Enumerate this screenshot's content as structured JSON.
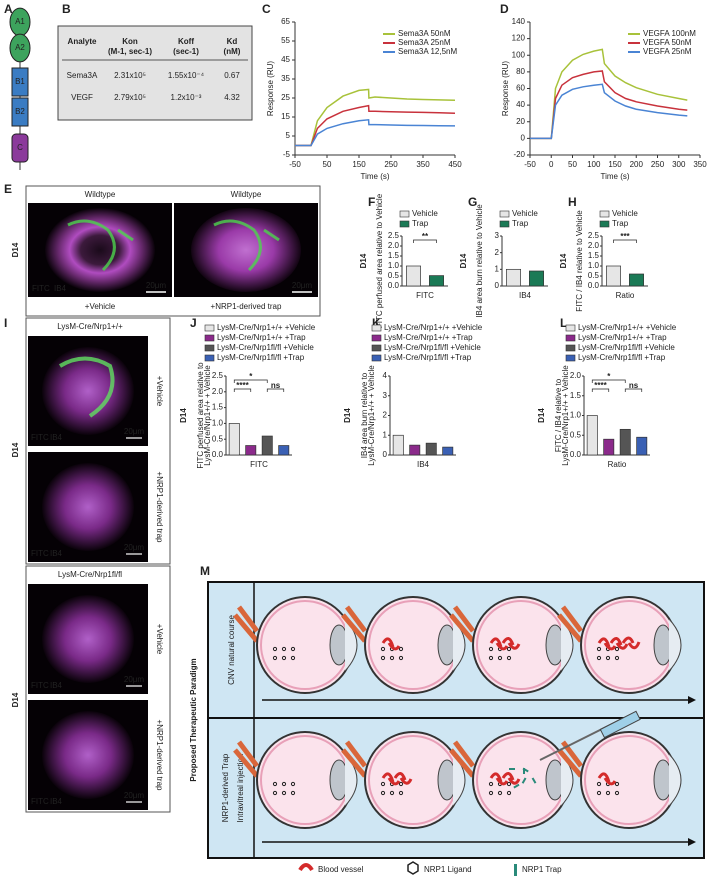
{
  "panel_labels": [
    "A",
    "B",
    "C",
    "D",
    "E",
    "F",
    "G",
    "H",
    "I",
    "J",
    "K",
    "L",
    "M"
  ],
  "domain_labels": [
    "A1",
    "A2",
    "B1",
    "B2",
    "C"
  ],
  "table": {
    "header": [
      [
        "Analyte"
      ],
      [
        "Kon",
        "(M-1, sec-1)"
      ],
      [
        "Koff",
        "(sec-1)"
      ],
      [
        "Kd",
        "(nM)"
      ]
    ],
    "rows": [
      [
        "Sema3A",
        "2.31x10⁵",
        "1.55x10⁻⁴",
        "0.67"
      ],
      [
        "VEGF",
        "2.79x10⁵",
        "1.2x10⁻³",
        "4.32"
      ]
    ]
  },
  "panel_e": {
    "day": "D14",
    "titles": [
      "Wildtype",
      "Wildtype"
    ],
    "conditions": [
      "+Vehicle",
      "+NRP1-derived trap"
    ],
    "stain": [
      "FITC",
      "IB4"
    ],
    "scale": [
      "20μm",
      "20μm"
    ]
  },
  "panel_i": {
    "days": [
      "D14",
      "D14"
    ],
    "titles": [
      "LysM-Cre/Nrp1+/+",
      "LysM-Cre/Nrp1fl/fl"
    ],
    "conditions": [
      "+Vehicle",
      "+NRP1-derived trap",
      "+Vehicle",
      "+NRP1-derived trap"
    ],
    "stain": [
      [
        "FITC",
        "IB4"
      ],
      [
        "FITC",
        "IB4"
      ],
      [
        "FITC",
        "IB4"
      ],
      [
        "FITC",
        "IB4"
      ]
    ],
    "scale": [
      "20μm",
      "20μm",
      "20μm",
      "20μm"
    ]
  },
  "panel_m": {
    "title": "Proposed Therapeutic Paradigm",
    "row1": [
      "CNV natural course"
    ],
    "row2": [
      "NRP1-derived Trap",
      "Intravitreal injection"
    ],
    "legend": [
      "Blood vessel",
      "NRP1 Ligand",
      "NRP1 Trap"
    ]
  },
  "chart_data": [
    {
      "type": "line",
      "x_label": "Time (s)",
      "y_label": "Response (RU)",
      "legend": "upper right",
      "x": [
        -50,
        -5,
        0,
        20,
        50,
        100,
        150,
        180,
        181,
        200,
        250,
        300,
        350,
        400,
        450
      ],
      "xlim": [
        -50,
        450
      ],
      "xticks": [
        -50,
        50,
        150,
        250,
        350,
        450
      ],
      "ylim": [
        -5,
        65
      ],
      "yticks": [
        -5,
        5,
        15,
        25,
        35,
        45,
        55,
        65
      ],
      "series": [
        {
          "name": "Sema3A 50nM",
          "color": "#a8c23a",
          "values": [
            0,
            0,
            0,
            13,
            20,
            26,
            29,
            29.5,
            25,
            25.5,
            25,
            24.5,
            24.2,
            24,
            23.8
          ]
        },
        {
          "name": "Sema3A 25nM",
          "color": "#c8323c",
          "values": [
            0,
            0,
            0,
            9,
            14,
            18,
            20,
            21,
            18,
            18,
            17.8,
            17.6,
            17.4,
            17.2,
            17
          ]
        },
        {
          "name": "Sema3A 12,5nM",
          "color": "#4a84d4",
          "values": [
            0,
            0,
            0,
            6,
            9,
            11.5,
            13,
            13.5,
            11,
            11,
            10.8,
            10.6,
            10.5,
            10.4,
            10.3
          ]
        }
      ]
    },
    {
      "type": "line",
      "x_label": "Time (s)",
      "y_label": "Response (RU)",
      "legend": "upper right",
      "x": [
        -50,
        -10,
        0,
        10,
        25,
        50,
        75,
        100,
        120,
        125,
        150,
        175,
        200,
        250,
        300,
        320
      ],
      "xlim": [
        -50,
        350
      ],
      "xticks": [
        -50,
        0,
        50,
        100,
        150,
        200,
        250,
        300,
        350
      ],
      "ylim": [
        -20,
        140
      ],
      "yticks": [
        -20,
        0,
        20,
        40,
        60,
        80,
        100,
        120,
        140
      ],
      "series": [
        {
          "name": "VEGFA 100nM",
          "color": "#a8c23a",
          "values": [
            0,
            0,
            0,
            60,
            80,
            94,
            101,
            105,
            107,
            90,
            75,
            67,
            61,
            53,
            48,
            46
          ]
        },
        {
          "name": "VEGFA 50nM",
          "color": "#c8323c",
          "values": [
            0,
            0,
            0,
            48,
            64,
            73,
            77,
            80,
            81,
            68,
            55,
            48,
            44,
            39,
            35,
            34
          ]
        },
        {
          "name": "VEGFA 25nM",
          "color": "#4a84d4",
          "values": [
            0,
            0,
            0,
            40,
            52,
            59,
            62,
            64,
            65,
            55,
            45,
            39,
            35,
            31,
            28,
            27
          ]
        }
      ]
    },
    {
      "type": "bar",
      "title": "D14",
      "y_label": [
        "FITC perfused area relative to Vehicle"
      ],
      "categories": [
        "FITC"
      ],
      "ylim": [
        0,
        2.5
      ],
      "yticks": [
        {
          "value": 0,
          "label": "0.0"
        },
        0.5,
        {
          "value": 1,
          "label": "1.0"
        },
        1.5,
        {
          "value": 2,
          "label": "2.0"
        },
        2.5
      ],
      "series": [
        {
          "name": "Vehicle",
          "color": "#e6e6e6",
          "values": [
            1.0
          ]
        },
        {
          "name": "Trap",
          "color": "#1b7a56",
          "values": [
            0.52
          ]
        }
      ],
      "annotations": [
        "**"
      ]
    },
    {
      "type": "bar",
      "title": "D14",
      "y_label": [
        "IB4 area burn relative to Vehicle"
      ],
      "categories": [
        "IB4"
      ],
      "ylim": [
        0,
        3
      ],
      "yticks": [
        0,
        1,
        2,
        3
      ],
      "series": [
        {
          "name": "Vehicle",
          "color": "#e6e6e6",
          "values": [
            1.0
          ]
        },
        {
          "name": "Trap",
          "color": "#1b7a56",
          "values": [
            0.9
          ]
        }
      ],
      "annotations": []
    },
    {
      "type": "bar",
      "title": "D14",
      "y_label": [
        "FITC / IB4 relative to Vehicle"
      ],
      "categories": [
        "Ratio"
      ],
      "ylim": [
        0,
        2.5
      ],
      "yticks": [
        {
          "value": 0,
          "label": "0.0"
        },
        0.5,
        {
          "value": 1,
          "label": "1.0"
        },
        1.5,
        {
          "value": 2,
          "label": "2.0"
        },
        2.5
      ],
      "series": [
        {
          "name": "Vehicle",
          "color": "#e6e6e6",
          "values": [
            1.0
          ]
        },
        {
          "name": "Trap",
          "color": "#1b7a56",
          "values": [
            0.6
          ]
        }
      ],
      "annotations": [
        "***"
      ]
    },
    {
      "type": "bar",
      "title": "D14",
      "y_label": [
        "FITC perfused area relative to",
        "LysM-Cre/Nrp1+/+ + Vehicle"
      ],
      "categories": [
        "FITC"
      ],
      "ylim": [
        0,
        2.5
      ],
      "yticks": [
        {
          "value": 0,
          "label": "0.0"
        },
        0.5,
        {
          "value": 1,
          "label": "1.0"
        },
        1.5,
        {
          "value": 2,
          "label": "2.0"
        },
        2.5
      ],
      "series": [
        {
          "name": "LysM-Cre/Nrp1+/+ +Vehicle",
          "color": "#e6e6e6",
          "values": [
            1.0
          ]
        },
        {
          "name": "LysM-Cre/Nrp1+/+ +Trap",
          "color": "#8b2a8b",
          "values": [
            0.3
          ]
        },
        {
          "name": "LysM-Cre/Nrp1fl/fl +Vehicle",
          "color": "#555555",
          "values": [
            0.6
          ]
        },
        {
          "name": "LysM-Cre/Nrp1fl/fl +Trap",
          "color": "#3a60b4",
          "values": [
            0.3
          ]
        }
      ],
      "annotations": [
        "****",
        "*",
        "ns"
      ]
    },
    {
      "type": "bar",
      "title": "D14",
      "y_label": [
        "IB4 area burn relative to",
        "LysM-Cre/Nrp1+/+ + Vehicle"
      ],
      "categories": [
        "IB4"
      ],
      "ylim": [
        0,
        4
      ],
      "yticks": [
        0,
        1,
        2,
        3,
        4
      ],
      "series": [
        {
          "name": "LysM-Cre/Nrp1+/+ +Vehicle",
          "color": "#e6e6e6",
          "values": [
            1.0
          ]
        },
        {
          "name": "LysM-Cre/Nrp1+/+ +Trap",
          "color": "#8b2a8b",
          "values": [
            0.5
          ]
        },
        {
          "name": "LysM-Cre/Nrp1fl/fl +Vehicle",
          "color": "#555555",
          "values": [
            0.6
          ]
        },
        {
          "name": "LysM-Cre/Nrp1fl/fl +Trap",
          "color": "#3a60b4",
          "values": [
            0.4
          ]
        }
      ],
      "annotations": []
    },
    {
      "type": "bar",
      "title": "D14",
      "y_label": [
        "FITC / IB4 relative to",
        "LysM-Cre/Nrp1+/+ + Vehicle"
      ],
      "categories": [
        "Ratio"
      ],
      "ylim": [
        0,
        2
      ],
      "yticks": [
        {
          "value": 0,
          "label": "0.0"
        },
        0.5,
        {
          "value": 1,
          "label": "1.0"
        },
        1.5,
        {
          "value": 2,
          "label": "2.0"
        }
      ],
      "series": [
        {
          "name": "LysM-Cre/Nrp1+/+ +Vehicle",
          "color": "#e6e6e6",
          "values": [
            1.0
          ]
        },
        {
          "name": "LysM-Cre/Nrp1+/+ +Trap",
          "color": "#8b2a8b",
          "values": [
            0.4
          ]
        },
        {
          "name": "LysM-Cre/Nrp1fl/fl +Vehicle",
          "color": "#555555",
          "values": [
            0.65
          ]
        },
        {
          "name": "LysM-Cre/Nrp1fl/fl +Trap",
          "color": "#3a60b4",
          "values": [
            0.45
          ]
        }
      ],
      "annotations": [
        "****",
        "*",
        "ns"
      ]
    }
  ]
}
